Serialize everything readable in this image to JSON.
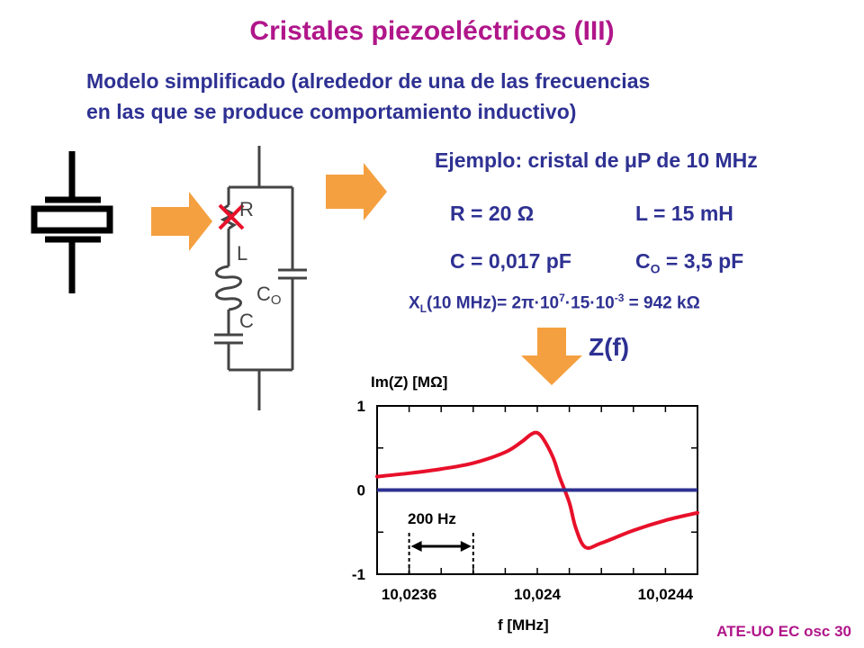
{
  "title": "Cristales piezoeléctricos (III)",
  "subtitle": {
    "line1": "Modelo simplificado (alrededor de una de las frecuencias",
    "line2": "en las que se produce comportamiento inductivo)"
  },
  "example": {
    "heading_prefix": "Ejemplo: cristal de ",
    "heading_mu": "μ",
    "heading_suffix": "P de 10 MHz",
    "r": "R = 20 Ω",
    "l": "L = 15 mH",
    "c": "C = 0,017 pF",
    "co_main": "C",
    "co_sub": "O",
    "co_value": " = 3,5 pF",
    "xl": {
      "x": "X",
      "sub": "L",
      "mid": "(10 MHz)= 2π·10",
      "exp1": "7",
      "mid2": "·15·10",
      "exp2": "-3",
      "end": " = 942 kΩ"
    }
  },
  "circuit": {
    "label_r": "R",
    "label_l": "L",
    "label_co": "C",
    "label_co_sub": "O",
    "label_c": "C"
  },
  "zf_label": "Z(f)",
  "footer": "ATE-UO EC osc 30",
  "colors": {
    "title": "#b0168a",
    "text": "#2e3192",
    "arrow": "#f5a040",
    "curve": "#e8102a",
    "zero_line": "#2e3192",
    "cross": "#e8102a"
  },
  "chart_data": {
    "type": "line",
    "ylabel": "Im(Z)  [MΩ]",
    "xlabel": "f [MHz]",
    "xticks": [
      "10,0236",
      "10,024",
      "10,0244"
    ],
    "yticks": [
      "1",
      "0",
      "-1"
    ],
    "xlim": [
      10.0235,
      10.0245
    ],
    "ylim": [
      -1,
      1
    ],
    "annotation": "200 Hz",
    "annotation_span": [
      10.0236,
      10.0238
    ],
    "series": [
      {
        "x": [
          10.0235,
          10.0236,
          10.0237,
          10.0238,
          10.0239,
          10.02395,
          10.02398,
          10.024,
          10.02402,
          10.02405,
          10.02407,
          10.0241,
          10.02412,
          10.02415,
          10.0242,
          10.0243,
          10.0244,
          10.0245
        ],
        "y": [
          0.16,
          0.2,
          0.25,
          0.32,
          0.45,
          0.57,
          0.66,
          0.68,
          0.6,
          0.38,
          0.15,
          -0.15,
          -0.45,
          -0.68,
          -0.63,
          -0.48,
          -0.36,
          -0.27
        ]
      },
      {
        "x": [
          10.0235,
          10.0245
        ],
        "y": [
          0,
          0
        ]
      }
    ]
  }
}
